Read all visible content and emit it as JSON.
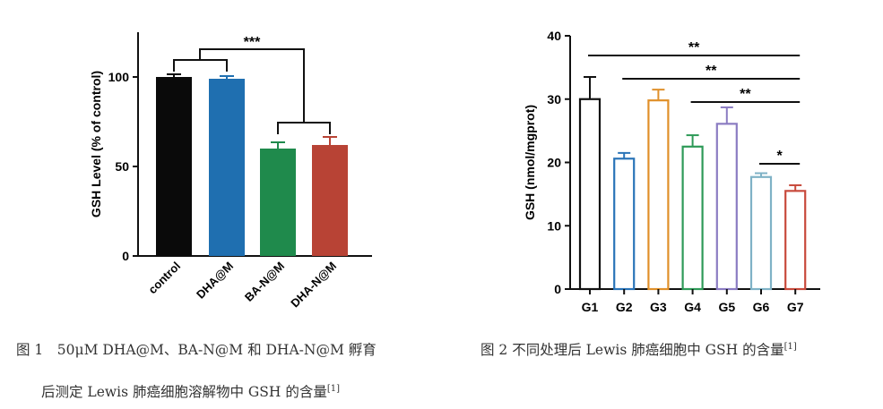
{
  "chart_data": [
    {
      "type": "bar",
      "ylabel": "GSH Level (% of control)",
      "ylim": [
        0,
        125
      ],
      "yticks": [
        "0",
        "50",
        "100"
      ],
      "categories": [
        "control",
        "DHA@M",
        "BA-N@M",
        "DHA-N@M"
      ],
      "values": [
        100,
        99,
        60,
        62
      ],
      "errors": [
        1.5,
        1.5,
        3.5,
        4.5
      ],
      "colors": [
        "#0a0a0a",
        "#1f6fb0",
        "#1f8a4c",
        "#b84335"
      ],
      "significance": [
        {
          "label": "***"
        }
      ]
    },
    {
      "type": "bar",
      "ylabel": "GSH (nmol/mgprot)",
      "ylim": [
        0,
        40
      ],
      "yticks": [
        "0",
        "10",
        "20",
        "30",
        "40"
      ],
      "categories": [
        "G1",
        "G2",
        "G3",
        "G4",
        "G5",
        "G6",
        "G7"
      ],
      "values": [
        30,
        20.6,
        29.8,
        22.5,
        26.1,
        17.7,
        15.5
      ],
      "errors": [
        3.5,
        0.9,
        1.7,
        1.8,
        2.6,
        0.6,
        0.9
      ],
      "colors": [
        "#111111",
        "#2a74b8",
        "#e0902a",
        "#2e9a58",
        "#8b7cc2",
        "#7fb2c6",
        "#c84a3c"
      ],
      "significance": [
        {
          "label": "**"
        },
        {
          "label": "**"
        },
        {
          "label": "**"
        },
        {
          "label": "*"
        }
      ]
    }
  ],
  "captions": {
    "fig1_line1": "图 1　50μM DHA@M、BA-N@M 和 DHA-N@M 孵育",
    "fig1_line2": "后测定 Lewis 肺癌细胞溶解物中 GSH 的含量",
    "fig2": "图 2 不同处理后 Lewis 肺癌细胞中 GSH 的含量",
    "ref": "[1]"
  }
}
